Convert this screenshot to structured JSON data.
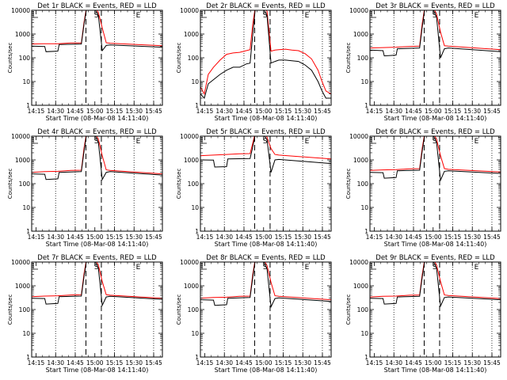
{
  "colors": {
    "events": "#000000",
    "lld": "#ff0000",
    "background": "#ffffff",
    "axes": "#000000"
  },
  "x_tick_labels": [
    "14:15",
    "14:30",
    "14:45",
    "15:00",
    "15:15",
    "15:30",
    "15:45"
  ],
  "x_label": "Start Time (08-Mar-08 14:11:40)",
  "y_label": "Counts/sec",
  "y_tick_labels": [
    "1",
    "10",
    "100",
    "1000",
    "10000"
  ],
  "markers": {
    "s": "S",
    "e": "E",
    "s_time": 49.5,
    "e_time": 81.5,
    "flag_time": 0
  },
  "chart_data": [
    {
      "type": "line",
      "title": "Det 1r BLACK = Events, RED = LLD",
      "scale": "log",
      "xlim": [
        0,
        100
      ],
      "ylim": [
        1,
        10000
      ],
      "x_unit": "minutes after 14:11:40",
      "dotted_lines_x": [
        18.3,
        33.3,
        63.3,
        78.3,
        93.3
      ],
      "dashed_lines_x": [
        41.5,
        53.3
      ],
      "series": [
        {
          "name": "Events",
          "x": [
            0,
            10,
            11,
            20,
            21,
            38,
            40,
            42,
            45,
            48,
            51,
            54,
            57,
            60,
            100
          ],
          "y": [
            310,
            300,
            180,
            190,
            360,
            380,
            2500,
            12000,
            12000,
            12000,
            6000,
            200,
            330,
            350,
            280
          ]
        },
        {
          "name": "LLD",
          "x": [
            0,
            10,
            20,
            30,
            38,
            40,
            42,
            45,
            48,
            51,
            54,
            57,
            60,
            100
          ],
          "y": [
            380,
            390,
            390,
            420,
            420,
            3000,
            14000,
            14000,
            14000,
            8000,
            1800,
            430,
            410,
            320
          ]
        }
      ]
    },
    {
      "type": "line",
      "title": "Det 2r BLACK = Events, RED = LLD",
      "scale": "log",
      "xlim": [
        0,
        100
      ],
      "ylim": [
        1,
        10000
      ],
      "x_unit": "minutes after 14:11:40",
      "dotted_lines_x": [
        18.3,
        33.3,
        63.3,
        78.3,
        93.3
      ],
      "dashed_lines_x": [
        41.5,
        53.3
      ],
      "series": [
        {
          "name": "Events",
          "x": [
            0,
            3,
            6,
            10,
            15,
            20,
            25,
            30,
            35,
            38,
            40,
            42,
            45,
            48,
            51,
            54,
            57,
            60,
            65,
            70,
            75,
            80,
            85,
            90,
            93,
            96,
            100
          ],
          "y": [
            3,
            2,
            8,
            12,
            20,
            30,
            40,
            40,
            55,
            60,
            900,
            12000,
            12000,
            12000,
            6000,
            60,
            70,
            80,
            80,
            75,
            70,
            50,
            30,
            10,
            4,
            2,
            2
          ]
        },
        {
          "name": "LLD",
          "x": [
            0,
            3,
            6,
            10,
            15,
            20,
            25,
            30,
            35,
            38,
            40,
            42,
            45,
            48,
            51,
            54,
            57,
            60,
            65,
            70,
            75,
            80,
            85,
            90,
            93,
            96,
            100
          ],
          "y": [
            6,
            3,
            20,
            40,
            80,
            140,
            160,
            170,
            200,
            220,
            2500,
            14000,
            14000,
            14000,
            9000,
            190,
            210,
            220,
            230,
            210,
            200,
            150,
            90,
            30,
            10,
            4,
            3
          ]
        }
      ]
    },
    {
      "type": "line",
      "title": "Det 3r BLACK = Events, RED = LLD",
      "scale": "log",
      "xlim": [
        0,
        100
      ],
      "ylim": [
        1,
        10000
      ],
      "x_unit": "minutes after 14:11:40",
      "dotted_lines_x": [
        18.3,
        33.3,
        63.3,
        78.3,
        93.3
      ],
      "dashed_lines_x": [
        41.5,
        53.3
      ],
      "series": [
        {
          "name": "Events",
          "x": [
            0,
            10,
            11,
            20,
            21,
            38,
            40,
            42,
            45,
            48,
            51,
            54,
            57,
            60,
            100
          ],
          "y": [
            210,
            200,
            120,
            130,
            240,
            260,
            2000,
            12000,
            12000,
            12000,
            5000,
            100,
            240,
            260,
            180
          ]
        },
        {
          "name": "LLD",
          "x": [
            0,
            10,
            20,
            30,
            38,
            40,
            42,
            45,
            48,
            51,
            54,
            57,
            60,
            100
          ],
          "y": [
            260,
            270,
            280,
            300,
            310,
            2800,
            14000,
            14000,
            14000,
            7000,
            1200,
            320,
            310,
            220
          ]
        }
      ]
    },
    {
      "type": "line",
      "title": "Det 4r BLACK = Events, RED = LLD",
      "scale": "log",
      "xlim": [
        0,
        100
      ],
      "ylim": [
        1,
        10000
      ],
      "x_unit": "minutes after 14:11:40",
      "dotted_lines_x": [
        18.3,
        33.3,
        63.3,
        78.3,
        93.3
      ],
      "dashed_lines_x": [
        41.5,
        53.3
      ],
      "series": [
        {
          "name": "Events",
          "x": [
            0,
            10,
            11,
            20,
            21,
            38,
            40,
            42,
            45,
            48,
            51,
            54,
            57,
            60,
            100
          ],
          "y": [
            260,
            250,
            150,
            160,
            300,
            320,
            2200,
            12000,
            12000,
            12000,
            5500,
            150,
            300,
            320,
            230
          ]
        },
        {
          "name": "LLD",
          "x": [
            0,
            10,
            20,
            30,
            38,
            40,
            42,
            45,
            48,
            51,
            54,
            57,
            60,
            100
          ],
          "y": [
            300,
            320,
            330,
            360,
            370,
            3000,
            14000,
            14000,
            14000,
            7500,
            1500,
            380,
            360,
            260
          ]
        }
      ]
    },
    {
      "type": "line",
      "title": "Det 5r BLACK = Events, RED = LLD",
      "scale": "log",
      "xlim": [
        0,
        100
      ],
      "ylim": [
        1,
        10000
      ],
      "x_unit": "minutes after 14:11:40",
      "dotted_lines_x": [
        18.3,
        33.3,
        63.3,
        78.3,
        93.3
      ],
      "dashed_lines_x": [
        41.5,
        53.3
      ],
      "series": [
        {
          "name": "Events",
          "x": [
            0,
            10,
            11,
            20,
            21,
            38,
            40,
            42,
            45,
            48,
            51,
            54,
            57,
            60,
            100
          ],
          "y": [
            1000,
            980,
            500,
            520,
            1100,
            1150,
            3500,
            12000,
            12000,
            12000,
            7000,
            300,
            1000,
            1050,
            700
          ]
        },
        {
          "name": "LLD",
          "x": [
            0,
            10,
            20,
            30,
            38,
            40,
            42,
            45,
            48,
            51,
            54,
            57,
            60,
            100
          ],
          "y": [
            1500,
            1600,
            1700,
            1800,
            1850,
            5000,
            14000,
            14000,
            14000,
            9000,
            3000,
            1700,
            1600,
            1100
          ]
        }
      ]
    },
    {
      "type": "line",
      "title": "Det 6r BLACK = Events, RED = LLD",
      "scale": "log",
      "xlim": [
        0,
        100
      ],
      "ylim": [
        1,
        10000
      ],
      "x_unit": "minutes after 14:11:40",
      "dotted_lines_x": [
        18.3,
        33.3,
        63.3,
        78.3,
        93.3
      ],
      "dashed_lines_x": [
        41.5,
        53.3
      ],
      "series": [
        {
          "name": "Events",
          "x": [
            0,
            10,
            11,
            20,
            21,
            38,
            40,
            42,
            45,
            48,
            51,
            54,
            57,
            60,
            100
          ],
          "y": [
            300,
            290,
            170,
            180,
            350,
            370,
            2400,
            12000,
            12000,
            12000,
            5500,
            140,
            330,
            350,
            270
          ]
        },
        {
          "name": "LLD",
          "x": [
            0,
            10,
            20,
            30,
            38,
            40,
            42,
            45,
            48,
            51,
            54,
            57,
            60,
            100
          ],
          "y": [
            360,
            380,
            390,
            420,
            430,
            3200,
            14000,
            14000,
            14000,
            7500,
            1500,
            430,
            400,
            310
          ]
        }
      ]
    },
    {
      "type": "line",
      "title": "Det 7r BLACK = Events, RED = LLD",
      "scale": "log",
      "xlim": [
        0,
        100
      ],
      "ylim": [
        1,
        10000
      ],
      "x_unit": "minutes after 14:11:40",
      "dotted_lines_x": [
        18.3,
        33.3,
        63.3,
        78.3,
        93.3
      ],
      "dashed_lines_x": [
        41.5,
        53.3
      ],
      "series": [
        {
          "name": "Events",
          "x": [
            0,
            10,
            11,
            20,
            21,
            38,
            40,
            42,
            45,
            48,
            51,
            54,
            57,
            60,
            100
          ],
          "y": [
            300,
            290,
            170,
            180,
            350,
            370,
            2400,
            12000,
            12000,
            12000,
            5500,
            150,
            340,
            360,
            270
          ]
        },
        {
          "name": "LLD",
          "x": [
            0,
            10,
            20,
            30,
            38,
            40,
            42,
            45,
            48,
            51,
            54,
            57,
            60,
            100
          ],
          "y": [
            350,
            370,
            380,
            410,
            420,
            3100,
            14000,
            14000,
            14000,
            7500,
            1500,
            420,
            400,
            300
          ]
        }
      ]
    },
    {
      "type": "line",
      "title": "Det 8r BLACK = Events, RED = LLD",
      "scale": "log",
      "xlim": [
        0,
        100
      ],
      "ylim": [
        1,
        10000
      ],
      "x_unit": "minutes after 14:11:40",
      "dotted_lines_x": [
        18.3,
        33.3,
        63.3,
        78.3,
        93.3
      ],
      "dashed_lines_x": [
        41.5,
        53.3
      ],
      "series": [
        {
          "name": "Events",
          "x": [
            0,
            10,
            11,
            20,
            21,
            38,
            40,
            42,
            45,
            48,
            51,
            54,
            57,
            60,
            100
          ],
          "y": [
            260,
            250,
            150,
            160,
            300,
            320,
            2200,
            12000,
            12000,
            12000,
            5000,
            130,
            290,
            310,
            220
          ]
        },
        {
          "name": "LLD",
          "x": [
            0,
            10,
            20,
            30,
            38,
            40,
            42,
            45,
            48,
            51,
            54,
            57,
            60,
            100
          ],
          "y": [
            300,
            320,
            330,
            360,
            370,
            2900,
            14000,
            14000,
            14000,
            7000,
            1400,
            380,
            360,
            260
          ]
        }
      ]
    },
    {
      "type": "line",
      "title": "Det 9r BLACK = Events, RED = LLD",
      "scale": "log",
      "xlim": [
        0,
        100
      ],
      "ylim": [
        1,
        10000
      ],
      "x_unit": "minutes after 14:11:40",
      "dotted_lines_x": [
        18.3,
        33.3,
        63.3,
        78.3,
        93.3
      ],
      "dashed_lines_x": [
        41.5,
        53.3
      ],
      "series": [
        {
          "name": "Events",
          "x": [
            0,
            10,
            11,
            20,
            21,
            38,
            40,
            42,
            45,
            48,
            51,
            54,
            57,
            60,
            100
          ],
          "y": [
            300,
            290,
            170,
            180,
            340,
            360,
            2300,
            12000,
            12000,
            12000,
            5500,
            140,
            320,
            340,
            260
          ]
        },
        {
          "name": "LLD",
          "x": [
            0,
            10,
            20,
            30,
            38,
            40,
            42,
            45,
            48,
            51,
            54,
            57,
            60,
            100
          ],
          "y": [
            340,
            360,
            370,
            400,
            410,
            3000,
            14000,
            14000,
            14000,
            7500,
            1500,
            410,
            390,
            290
          ]
        }
      ]
    }
  ]
}
